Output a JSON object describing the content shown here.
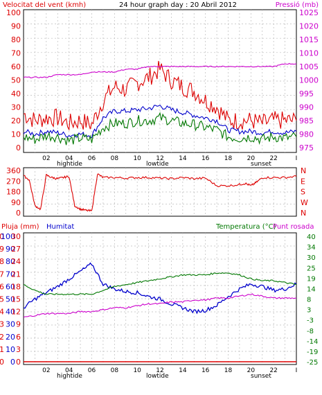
{
  "chart_data": [
    {
      "type": "line",
      "title": "24 hour graph day : 20 Abril 2012",
      "left_axis_label": "Velocitat del vent (kmh)",
      "right_axis_label": "Pressió (mb)",
      "left_ticks": [
        "0",
        "10",
        "20",
        "30",
        "40",
        "50",
        "60",
        "70",
        "80",
        "90",
        "100"
      ],
      "right_ticks": [
        "975",
        "980",
        "985",
        "990",
        "995",
        "1000",
        "1005",
        "1010",
        "1015",
        "1020",
        "1025"
      ],
      "x_ticks": [
        "02",
        "04",
        "06",
        "08",
        "10",
        "12",
        "14",
        "16",
        "18",
        "20",
        "22",
        "I"
      ],
      "annotations": [
        "hightide",
        "lowtide",
        "sunset"
      ],
      "ylim_left": [
        0,
        100
      ],
      "ylim_right": [
        975,
        1025
      ],
      "grid": true,
      "colors": {
        "gust": "#dd0000",
        "wind": "#0000cc",
        "wind_min": "#007700",
        "pressure": "#cc00cc"
      },
      "series_x": [
        0,
        1,
        2,
        3,
        4,
        5,
        6,
        7,
        8,
        9,
        10,
        11,
        12,
        13,
        14,
        15,
        16,
        17,
        18,
        19,
        20,
        21,
        22,
        23,
        24
      ],
      "series": [
        {
          "key": "gust",
          "values": [
            25,
            20,
            22,
            22,
            18,
            20,
            17,
            35,
            45,
            43,
            48,
            52,
            58,
            50,
            45,
            42,
            35,
            30,
            20,
            20,
            20,
            18,
            20,
            20,
            20
          ]
        },
        {
          "key": "wind",
          "values": [
            12,
            10,
            12,
            11,
            9,
            10,
            9,
            22,
            27,
            27,
            28,
            29,
            31,
            28,
            26,
            24,
            22,
            20,
            13,
            12,
            12,
            11,
            12,
            11,
            12
          ]
        },
        {
          "key": "wind_min",
          "values": [
            8,
            6,
            9,
            8,
            5,
            7,
            6,
            15,
            18,
            18,
            20,
            20,
            22,
            20,
            18,
            17,
            15,
            13,
            8,
            7,
            8,
            6,
            8,
            7,
            8
          ]
        },
        {
          "key": "pressure",
          "values": [
            1001,
            1001,
            1001,
            1002,
            1002,
            1002,
            1003,
            1003,
            1003,
            1004,
            1004,
            1005,
            1005,
            1005,
            1005,
            1005,
            1005,
            1005,
            1005,
            1005,
            1005,
            1005,
            1005,
            1006,
            1006
          ]
        }
      ]
    },
    {
      "type": "line",
      "y_ticks": [
        "0",
        "90",
        "180",
        "270",
        "360"
      ],
      "right_labels": [
        "N",
        "W",
        "S",
        "E",
        "N"
      ],
      "ylim": [
        0,
        360
      ],
      "series_x": [
        0,
        0.5,
        1,
        1.5,
        2,
        2.5,
        3,
        3.5,
        4,
        4.5,
        5,
        5.5,
        6,
        6.5,
        7,
        8,
        9,
        10,
        11,
        12,
        13,
        14,
        15,
        16,
        17,
        18,
        19,
        19.5,
        20,
        20.5,
        21,
        22,
        23,
        24
      ],
      "series": [
        {
          "key": "direction",
          "color": "#dd0000",
          "values": [
            315,
            280,
            60,
            30,
            320,
            300,
            290,
            300,
            310,
            60,
            30,
            20,
            15,
            330,
            300,
            300,
            295,
            300,
            300,
            295,
            290,
            300,
            290,
            295,
            230,
            230,
            240,
            250,
            230,
            260,
            300,
            300,
            300,
            310
          ]
        }
      ]
    },
    {
      "type": "line",
      "labels": {
        "rain": "Pluja (mm)",
        "humidity": "Humitat",
        "temperature": "Temperatura (°C)",
        "dewpoint": "Punt rosada"
      },
      "left_ticks_rain": [
        "0",
        "1",
        "2",
        "3",
        "4",
        "5",
        "6",
        "7",
        "8",
        "9",
        "10"
      ],
      "left_ticks_humidity": [
        "0",
        "10",
        "20",
        "30",
        "40",
        "50",
        "60",
        "70",
        "80",
        "90",
        "100"
      ],
      "left_ticks_extra": [
        "0",
        "3",
        "6",
        "9",
        "12",
        "15",
        "18",
        "21",
        "24",
        "27",
        "30"
      ],
      "right_ticks": [
        "-25",
        "-19",
        "-14",
        "-8",
        "-3",
        "3",
        "8",
        "14",
        "19",
        "25",
        "30",
        "34",
        "40"
      ],
      "x_ticks": [
        "02",
        "04",
        "06",
        "08",
        "10",
        "12",
        "14",
        "16",
        "18",
        "20",
        "22",
        "I"
      ],
      "annotations": [
        "hightide",
        "lowtide",
        "sunset"
      ],
      "ylim_humidity": [
        0,
        100
      ],
      "ylim_temperature": [
        -25,
        40
      ],
      "colors": {
        "humidity": "#0000cc",
        "temperature": "#007700",
        "dewpoint": "#cc00cc",
        "rain": "#dd0000"
      },
      "series_x": [
        0,
        1,
        2,
        3,
        4,
        5,
        6,
        7,
        8,
        9,
        10,
        11,
        12,
        13,
        14,
        15,
        16,
        17,
        18,
        19,
        20,
        21,
        22,
        23,
        24
      ],
      "series": [
        {
          "key": "humidity",
          "values": [
            43,
            50,
            55,
            60,
            66,
            72,
            78,
            62,
            58,
            56,
            55,
            52,
            50,
            46,
            43,
            40,
            41,
            45,
            52,
            58,
            62,
            60,
            57,
            58,
            62
          ]
        },
        {
          "key": "temperature",
          "values": [
            15,
            12,
            10,
            10,
            10,
            10,
            10,
            12,
            14,
            15,
            16,
            17,
            18,
            19,
            20,
            20,
            20,
            21,
            21,
            20,
            18,
            17,
            17,
            16,
            15
          ]
        },
        {
          "key": "dewpoint",
          "values": [
            -2,
            -1,
            0,
            0,
            0,
            1,
            1,
            2,
            3,
            3,
            4,
            5,
            5,
            6,
            6,
            7,
            7,
            8,
            8,
            9,
            10,
            9,
            8,
            8,
            8
          ]
        },
        {
          "key": "rain",
          "values": [
            0,
            0,
            0,
            0,
            0,
            0,
            0,
            0,
            0,
            0,
            0,
            0,
            0,
            0,
            0,
            0,
            0,
            0,
            0,
            0,
            0,
            0,
            0,
            0,
            0
          ]
        }
      ]
    }
  ]
}
